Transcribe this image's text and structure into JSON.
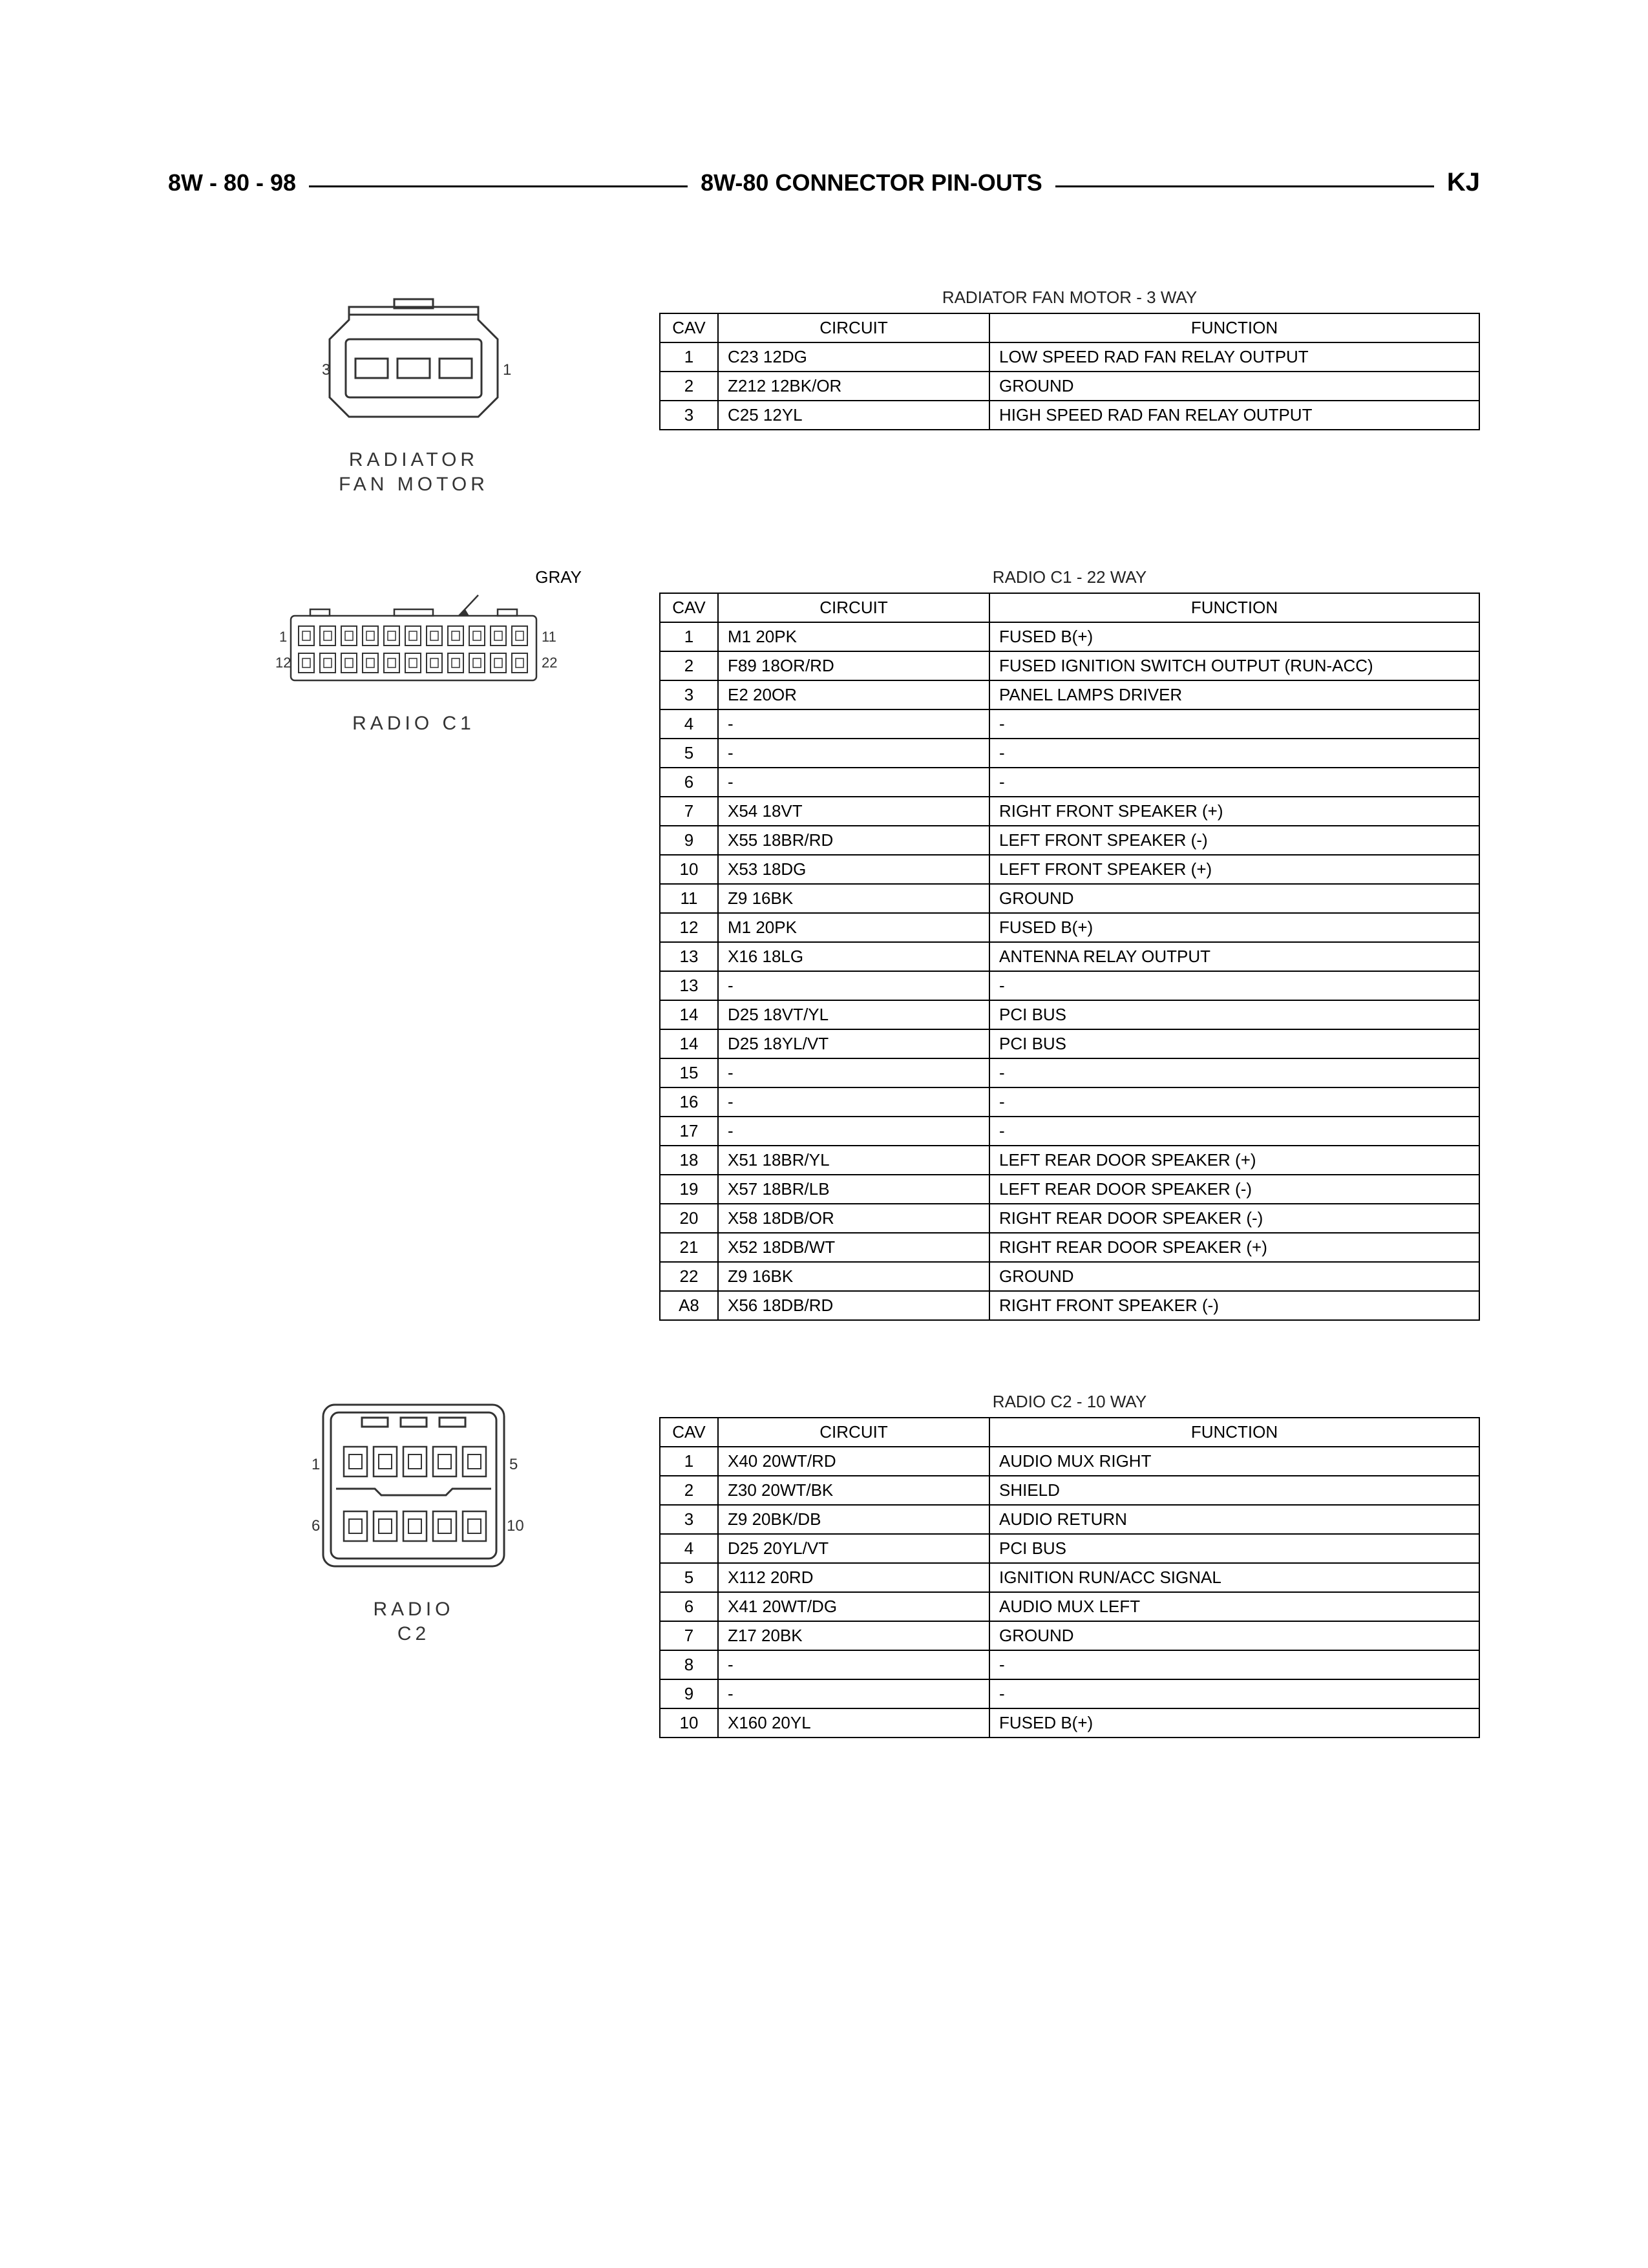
{
  "header": {
    "left": "8W - 80 - 98",
    "center": "8W-80 CONNECTOR PIN-OUTS",
    "right": "KJ"
  },
  "sections": [
    {
      "diagram_label": "RADIATOR\nFAN MOTOR",
      "callout": "",
      "table_title": "RADIATOR FAN MOTOR - 3 WAY",
      "columns": [
        "CAV",
        "CIRCUIT",
        "FUNCTION"
      ],
      "rows": [
        [
          "1",
          "C23 12DG",
          "LOW SPEED RAD FAN RELAY OUTPUT"
        ],
        [
          "2",
          "Z212 12BK/OR",
          "GROUND"
        ],
        [
          "3",
          "C25 12YL",
          "HIGH SPEED RAD FAN RELAY OUTPUT"
        ]
      ]
    },
    {
      "diagram_label": "RADIO C1",
      "callout": "GRAY",
      "table_title": "RADIO C1 - 22 WAY",
      "columns": [
        "CAV",
        "CIRCUIT",
        "FUNCTION"
      ],
      "rows": [
        [
          "1",
          "M1 20PK",
          "FUSED B(+)"
        ],
        [
          "2",
          "F89 18OR/RD",
          "FUSED IGNITION SWITCH OUTPUT (RUN-ACC)"
        ],
        [
          "3",
          "E2 20OR",
          "PANEL LAMPS DRIVER"
        ],
        [
          "4",
          "-",
          "-"
        ],
        [
          "5",
          "-",
          "-"
        ],
        [
          "6",
          "-",
          "-"
        ],
        [
          "7",
          "X54 18VT",
          "RIGHT FRONT SPEAKER (+)"
        ],
        [
          "9",
          "X55 18BR/RD",
          "LEFT FRONT SPEAKER (-)"
        ],
        [
          "10",
          "X53 18DG",
          "LEFT FRONT SPEAKER (+)"
        ],
        [
          "11",
          "Z9 16BK",
          "GROUND"
        ],
        [
          "12",
          "M1 20PK",
          "FUSED B(+)"
        ],
        [
          "13",
          "X16 18LG",
          "ANTENNA RELAY OUTPUT"
        ],
        [
          "13",
          "-",
          "-"
        ],
        [
          "14",
          "D25 18VT/YL",
          "PCI BUS"
        ],
        [
          "14",
          "D25 18YL/VT",
          "PCI BUS"
        ],
        [
          "15",
          "-",
          "-"
        ],
        [
          "16",
          "-",
          "-"
        ],
        [
          "17",
          "-",
          "-"
        ],
        [
          "18",
          "X51 18BR/YL",
          "LEFT REAR DOOR SPEAKER (+)"
        ],
        [
          "19",
          "X57 18BR/LB",
          "LEFT REAR DOOR SPEAKER (-)"
        ],
        [
          "20",
          "X58 18DB/OR",
          "RIGHT REAR DOOR SPEAKER (-)"
        ],
        [
          "21",
          "X52 18DB/WT",
          "RIGHT REAR DOOR SPEAKER (+)"
        ],
        [
          "22",
          "Z9 16BK",
          "GROUND"
        ],
        [
          "A8",
          "X56 18DB/RD",
          "RIGHT FRONT SPEAKER (-)"
        ]
      ]
    },
    {
      "diagram_label": "RADIO\nC2",
      "callout": "",
      "table_title": "RADIO C2 - 10 WAY",
      "columns": [
        "CAV",
        "CIRCUIT",
        "FUNCTION"
      ],
      "rows": [
        [
          "1",
          "X40 20WT/RD",
          "AUDIO MUX RIGHT"
        ],
        [
          "2",
          "Z30 20WT/BK",
          "SHIELD"
        ],
        [
          "3",
          "Z9 20BK/DB",
          "AUDIO RETURN"
        ],
        [
          "4",
          "D25 20YL/VT",
          "PCI BUS"
        ],
        [
          "5",
          "X112 20RD",
          "IGNITION RUN/ACC SIGNAL"
        ],
        [
          "6",
          "X41 20WT/DG",
          "AUDIO MUX LEFT"
        ],
        [
          "7",
          "Z17 20BK",
          "GROUND"
        ],
        [
          "8",
          "-",
          "-"
        ],
        [
          "9",
          "-",
          "-"
        ],
        [
          "10",
          "X160 20YL",
          "FUSED B(+)"
        ]
      ]
    }
  ]
}
